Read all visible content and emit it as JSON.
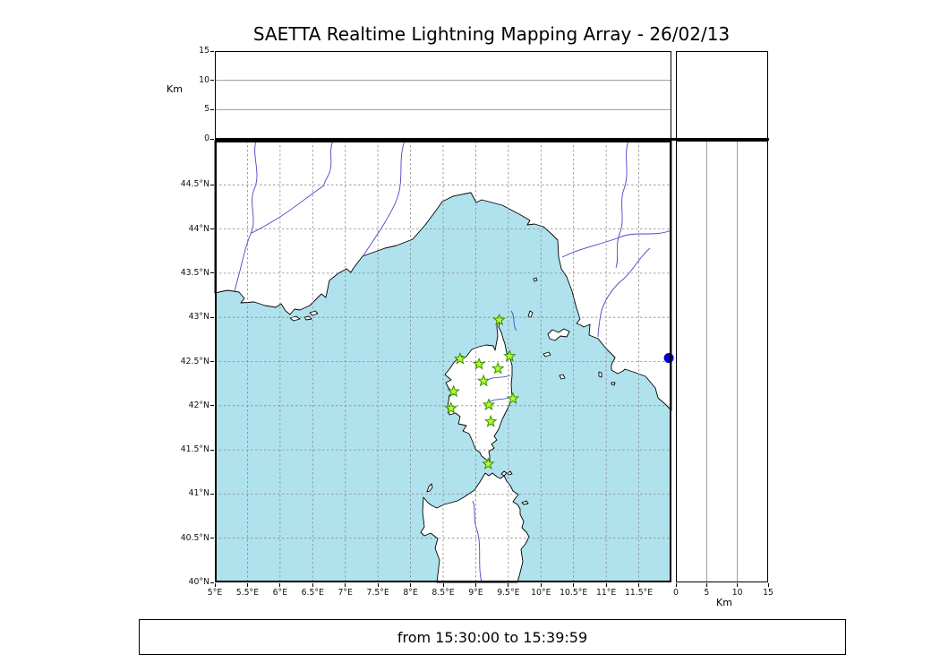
{
  "title": "SAETTA Realtime Lightning Mapping Array - 26/02/13",
  "time_range": {
    "text": "from 15:30:00 to 15:39:59"
  },
  "colors": {
    "sea": "#b0e2ee",
    "land": "#ffffff",
    "coastline": "#000000",
    "river": "#4646c8",
    "grid": "#8a8a8a",
    "panel_grid": "#8a8a8a",
    "station_fill": "#adff2f",
    "station_stroke": "#3f8f00",
    "source_fill": "#0000c8"
  },
  "map_axes": {
    "lon_range": [
      5,
      12
    ],
    "lat_range": [
      40,
      45
    ],
    "lon_ticks": [
      {
        "v": 5,
        "label": "5°E"
      },
      {
        "v": 5.5,
        "label": "5.5°E"
      },
      {
        "v": 6,
        "label": "6°E"
      },
      {
        "v": 6.5,
        "label": "6.5°E"
      },
      {
        "v": 7,
        "label": "7°E"
      },
      {
        "v": 7.5,
        "label": "7.5°E"
      },
      {
        "v": 8,
        "label": "8°E"
      },
      {
        "v": 8.5,
        "label": "8.5°E"
      },
      {
        "v": 9,
        "label": "9°E"
      },
      {
        "v": 9.5,
        "label": "9.5°E"
      },
      {
        "v": 10,
        "label": "10°E"
      },
      {
        "v": 10.5,
        "label": "10.5°E"
      },
      {
        "v": 11,
        "label": "11°E"
      },
      {
        "v": 11.5,
        "label": "11.5°E"
      }
    ],
    "lat_ticks": [
      {
        "v": 40,
        "label": "40°N"
      },
      {
        "v": 40.5,
        "label": "40.5°N"
      },
      {
        "v": 41,
        "label": "41°N"
      },
      {
        "v": 41.5,
        "label": "41.5°N"
      },
      {
        "v": 42,
        "label": "42°N"
      },
      {
        "v": 42.5,
        "label": "42.5°N"
      },
      {
        "v": 43,
        "label": "43°N"
      },
      {
        "v": 43.5,
        "label": "43.5°N"
      },
      {
        "v": 44,
        "label": "44°N"
      },
      {
        "v": 44.5,
        "label": "44.5°N"
      }
    ]
  },
  "altitude_axes": {
    "label_left": "Km",
    "label_bottom": "Km",
    "range": [
      0,
      15
    ],
    "ticks": [
      {
        "v": 0,
        "label": "0"
      },
      {
        "v": 5,
        "label": "5"
      },
      {
        "v": 10,
        "label": "10"
      },
      {
        "v": 15,
        "label": "15"
      }
    ],
    "gridlines_km": [
      5,
      10
    ]
  },
  "stations": [
    {
      "lon": 9.36,
      "lat": 42.97
    },
    {
      "lon": 8.76,
      "lat": 42.53
    },
    {
      "lon": 9.05,
      "lat": 42.47
    },
    {
      "lon": 9.34,
      "lat": 42.42
    },
    {
      "lon": 9.52,
      "lat": 42.56
    },
    {
      "lon": 9.12,
      "lat": 42.28
    },
    {
      "lon": 8.66,
      "lat": 42.16
    },
    {
      "lon": 9.57,
      "lat": 42.08
    },
    {
      "lon": 8.62,
      "lat": 41.97
    },
    {
      "lon": 9.2,
      "lat": 42.01
    },
    {
      "lon": 9.23,
      "lat": 41.82
    },
    {
      "lon": 9.19,
      "lat": 41.34
    }
  ],
  "sources": [
    {
      "lon": 11.96,
      "lat": 42.54
    }
  ]
}
